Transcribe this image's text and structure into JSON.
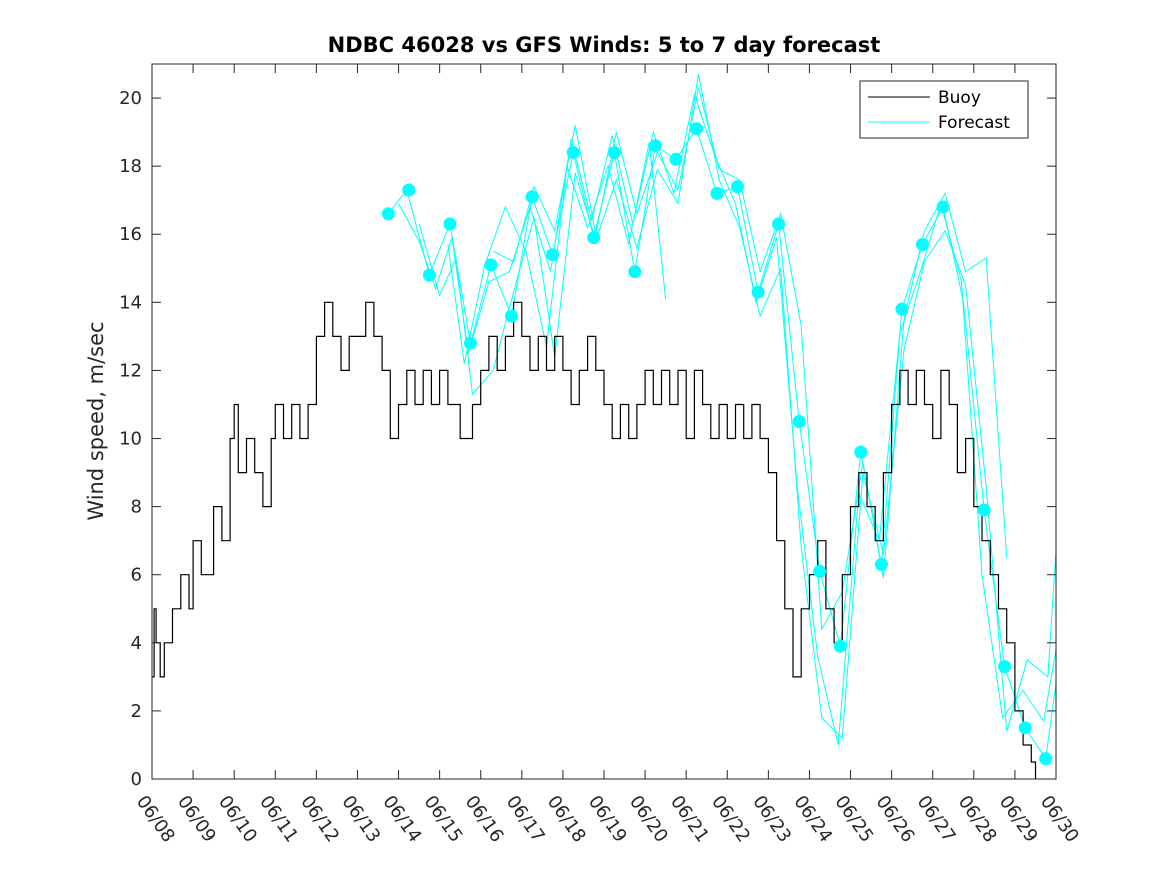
{
  "chart_data": {
    "type": "line",
    "title": "NDBC 46028 vs GFS Winds: 5 to 7 day forecast",
    "xlabel": "",
    "ylabel": "Wind speed, m/sec",
    "x_tick_labels": [
      "06/08",
      "06/09",
      "06/10",
      "06/11",
      "06/12",
      "06/13",
      "06/14",
      "06/15",
      "06/16",
      "06/17",
      "06/18",
      "06/19",
      "06/20",
      "06/21",
      "06/22",
      "06/23",
      "06/24",
      "06/25",
      "06/26",
      "06/27",
      "06/28",
      "06/29",
      "06/30"
    ],
    "y_tick_labels": [
      "0",
      "2",
      "4",
      "6",
      "8",
      "10",
      "12",
      "14",
      "16",
      "18",
      "20"
    ],
    "xlim": [
      0,
      22
    ],
    "ylim": [
      0,
      21
    ],
    "grid": false,
    "legend_position": "top-right",
    "colors": {
      "buoy": "#000000",
      "forecast": "#00ffff"
    },
    "series": [
      {
        "name": "Buoy",
        "points": [
          [
            0,
            3
          ],
          [
            0.05,
            5
          ],
          [
            0.1,
            4
          ],
          [
            0.2,
            3
          ],
          [
            0.3,
            4
          ],
          [
            0.5,
            5
          ],
          [
            0.7,
            6
          ],
          [
            0.9,
            5
          ],
          [
            1,
            7
          ],
          [
            1.2,
            6
          ],
          [
            1.35,
            6
          ],
          [
            1.5,
            8
          ],
          [
            1.7,
            7
          ],
          [
            1.9,
            10
          ],
          [
            2,
            11
          ],
          [
            2.1,
            9
          ],
          [
            2.3,
            10
          ],
          [
            2.5,
            9
          ],
          [
            2.7,
            8
          ],
          [
            2.9,
            10
          ],
          [
            3,
            11
          ],
          [
            3.2,
            10
          ],
          [
            3.4,
            11
          ],
          [
            3.6,
            10
          ],
          [
            3.8,
            11
          ],
          [
            4,
            13
          ],
          [
            4.2,
            14
          ],
          [
            4.4,
            13
          ],
          [
            4.6,
            12
          ],
          [
            4.8,
            13
          ],
          [
            5,
            13
          ],
          [
            5.2,
            14
          ],
          [
            5.4,
            13
          ],
          [
            5.6,
            12
          ],
          [
            5.8,
            10
          ],
          [
            6,
            11
          ],
          [
            6.2,
            12
          ],
          [
            6.4,
            11
          ],
          [
            6.6,
            12
          ],
          [
            6.8,
            11
          ],
          [
            7,
            12
          ],
          [
            7.2,
            11
          ],
          [
            7.5,
            10
          ],
          [
            7.8,
            11
          ],
          [
            8,
            12
          ],
          [
            8.2,
            13
          ],
          [
            8.4,
            12
          ],
          [
            8.6,
            13
          ],
          [
            8.8,
            14
          ],
          [
            9,
            13
          ],
          [
            9.2,
            12
          ],
          [
            9.4,
            13
          ],
          [
            9.6,
            12
          ],
          [
            9.8,
            13
          ],
          [
            10,
            12
          ],
          [
            10.2,
            11
          ],
          [
            10.4,
            12
          ],
          [
            10.6,
            13
          ],
          [
            10.8,
            12
          ],
          [
            11,
            11
          ],
          [
            11.2,
            10
          ],
          [
            11.4,
            11
          ],
          [
            11.6,
            10
          ],
          [
            11.8,
            11
          ],
          [
            12,
            12
          ],
          [
            12.2,
            11
          ],
          [
            12.4,
            12
          ],
          [
            12.6,
            11
          ],
          [
            12.8,
            12
          ],
          [
            13,
            10
          ],
          [
            13.2,
            12
          ],
          [
            13.4,
            11
          ],
          [
            13.6,
            10
          ],
          [
            13.8,
            11
          ],
          [
            14,
            10
          ],
          [
            14.2,
            11
          ],
          [
            14.4,
            10
          ],
          [
            14.6,
            11
          ],
          [
            14.8,
            10
          ],
          [
            15,
            9
          ],
          [
            15.2,
            7
          ],
          [
            15.4,
            5
          ],
          [
            15.6,
            3
          ],
          [
            15.8,
            5
          ],
          [
            16,
            6
          ],
          [
            16.2,
            7
          ],
          [
            16.4,
            5
          ],
          [
            16.6,
            4
          ],
          [
            16.8,
            6
          ],
          [
            17,
            8
          ],
          [
            17.2,
            9
          ],
          [
            17.4,
            8
          ],
          [
            17.6,
            7
          ],
          [
            17.8,
            9
          ],
          [
            18,
            11
          ],
          [
            18.2,
            12
          ],
          [
            18.4,
            11
          ],
          [
            18.6,
            12
          ],
          [
            18.8,
            11
          ],
          [
            19,
            10
          ],
          [
            19.2,
            12
          ],
          [
            19.4,
            11
          ],
          [
            19.6,
            9
          ],
          [
            19.8,
            10
          ],
          [
            20,
            8
          ],
          [
            20.2,
            7
          ],
          [
            20.4,
            6
          ],
          [
            20.6,
            5
          ],
          [
            20.8,
            4
          ],
          [
            21,
            2
          ],
          [
            21.2,
            1
          ],
          [
            21.4,
            0.5
          ],
          [
            21.5,
            0
          ]
        ]
      },
      {
        "name": "Forecast",
        "dots": [
          [
            5.75,
            16.6
          ],
          [
            6.25,
            17.3
          ],
          [
            6.75,
            14.8
          ],
          [
            7.25,
            16.3
          ],
          [
            7.75,
            12.8
          ],
          [
            8.25,
            15.1
          ],
          [
            8.75,
            13.6
          ],
          [
            9.25,
            17.1
          ],
          [
            9.75,
            15.4
          ],
          [
            10.25,
            18.4
          ],
          [
            10.75,
            15.9
          ],
          [
            11.25,
            18.4
          ],
          [
            11.75,
            14.9
          ],
          [
            12.25,
            18.6
          ],
          [
            12.75,
            18.2
          ],
          [
            13.25,
            19.1
          ],
          [
            13.75,
            17.2
          ],
          [
            14.25,
            17.4
          ],
          [
            14.75,
            14.3
          ],
          [
            15.25,
            16.3
          ],
          [
            15.75,
            10.5
          ],
          [
            16.25,
            6.1
          ],
          [
            16.75,
            3.9
          ],
          [
            17.25,
            9.6
          ],
          [
            17.75,
            6.3
          ],
          [
            18.25,
            13.8
          ],
          [
            18.75,
            15.7
          ],
          [
            19.25,
            16.8
          ],
          [
            20.25,
            7.9
          ],
          [
            20.75,
            3.3
          ],
          [
            21.25,
            1.5
          ],
          [
            21.75,
            0.6
          ]
        ],
        "lines": [
          [
            [
              5.75,
              16.6
            ],
            [
              6.2,
              17.3
            ],
            [
              6.75,
              14.8
            ],
            [
              7.25,
              16.3
            ],
            [
              7.75,
              12.8
            ],
            [
              8.25,
              15.1
            ],
            [
              8.75,
              13.6
            ],
            [
              9.25,
              17.1
            ],
            [
              9.75,
              15.4
            ],
            [
              10.25,
              18.4
            ],
            [
              10.75,
              15.9
            ],
            [
              11.25,
              18.4
            ],
            [
              11.75,
              14.9
            ],
            [
              12.25,
              18.6
            ],
            [
              12.75,
              18.2
            ],
            [
              13.25,
              19.1
            ],
            [
              13.75,
              17.2
            ],
            [
              14.25,
              17.4
            ],
            [
              14.75,
              14.3
            ],
            [
              15.25,
              16.3
            ],
            [
              15.75,
              10.5
            ],
            [
              16.25,
              6.1
            ],
            [
              16.75,
              3.9
            ],
            [
              17.25,
              9.6
            ],
            [
              17.75,
              6.3
            ],
            [
              18.25,
              13.8
            ],
            [
              18.75,
              15.7
            ],
            [
              19.25,
              16.8
            ],
            [
              19.75,
              14.0
            ],
            [
              20.25,
              7.9
            ],
            [
              20.75,
              3.3
            ],
            [
              21.25,
              1.5
            ],
            [
              21.75,
              0.6
            ],
            [
              22,
              2.8
            ]
          ],
          [
            [
              6,
              16.9
            ],
            [
              6.5,
              15.8
            ],
            [
              6.9,
              14.4
            ],
            [
              7.3,
              15.9
            ],
            [
              7.7,
              12.5
            ],
            [
              8.2,
              14.6
            ],
            [
              8.7,
              14.9
            ],
            [
              9.2,
              16.8
            ],
            [
              9.7,
              14.9
            ],
            [
              10.2,
              18.8
            ],
            [
              10.7,
              16.4
            ],
            [
              11.2,
              18.9
            ],
            [
              11.7,
              16.3
            ],
            [
              12.2,
              19.0
            ],
            [
              12.7,
              17.2
            ],
            [
              13.2,
              20.1
            ],
            [
              13.7,
              18.3
            ],
            [
              14.2,
              16.9
            ],
            [
              14.7,
              14.0
            ],
            [
              15.2,
              15.9
            ],
            [
              15.7,
              8.6
            ],
            [
              16.2,
              3.6
            ],
            [
              16.7,
              1.0
            ],
            [
              17.2,
              8.4
            ],
            [
              17.7,
              7.0
            ],
            [
              18.2,
              13.1
            ],
            [
              18.7,
              14.9
            ],
            [
              19.2,
              16.9
            ],
            [
              19.7,
              14.6
            ],
            [
              20.2,
              6.0
            ],
            [
              20.7,
              1.8
            ],
            [
              21.2,
              2.6
            ],
            [
              21.7,
              1.7
            ],
            [
              22,
              3.8
            ]
          ],
          [
            [
              6.5,
              16.3
            ],
            [
              7,
              14.2
            ],
            [
              7.4,
              15.3
            ],
            [
              7.8,
              11.3
            ],
            [
              8.3,
              12.0
            ],
            [
              8.8,
              14.3
            ],
            [
              9.3,
              16.5
            ],
            [
              9.8,
              12.4
            ],
            [
              10.3,
              17.8
            ],
            [
              10.8,
              15.8
            ],
            [
              11.3,
              17.6
            ],
            [
              11.8,
              15.6
            ],
            [
              12.3,
              17.9
            ],
            [
              12.8,
              16.9
            ],
            [
              13.3,
              20.7
            ],
            [
              13.8,
              17.6
            ],
            [
              14.3,
              16.2
            ],
            [
              14.8,
              13.6
            ],
            [
              15.3,
              15.0
            ],
            [
              15.8,
              6.8
            ],
            [
              16.3,
              1.8
            ],
            [
              16.8,
              1.2
            ],
            [
              17.3,
              9.0
            ],
            [
              17.8,
              6.6
            ],
            [
              18.3,
              12.6
            ],
            [
              18.8,
              15.2
            ],
            [
              19.3,
              16.1
            ],
            [
              19.8,
              14.5
            ],
            [
              20.3,
              8.6
            ],
            [
              20.8,
              1.4
            ],
            [
              21.3,
              3.5
            ],
            [
              21.8,
              3.0
            ],
            [
              22,
              6.7
            ]
          ],
          [
            [
              7.2,
              15.7
            ],
            [
              7.6,
              12.2
            ],
            [
              8.1,
              15.1
            ],
            [
              8.6,
              16.8
            ],
            [
              9.1,
              15.5
            ],
            [
              9.6,
              12.7
            ],
            [
              10.1,
              18.0
            ],
            [
              10.6,
              16.2
            ],
            [
              11.1,
              18.0
            ],
            [
              11.6,
              15.7
            ],
            [
              12.1,
              18.7
            ],
            [
              12.5,
              14.1
            ]
          ],
          [
            [
              8.3,
              15.5
            ],
            [
              8.8,
              15.2
            ],
            [
              9.3,
              17.4
            ],
            [
              9.8,
              16.1
            ],
            [
              10.3,
              19.2
            ],
            [
              10.8,
              16.0
            ],
            [
              11.3,
              19.0
            ],
            [
              11.8,
              16.6
            ],
            [
              12.3,
              18.4
            ],
            [
              12.8,
              17.3
            ],
            [
              13.3,
              20.3
            ],
            [
              13.8,
              17.9
            ],
            [
              14.3,
              17.6
            ],
            [
              14.8,
              14.9
            ],
            [
              15.3,
              16.6
            ],
            [
              15.8,
              13.3
            ],
            [
              16.3,
              4.4
            ],
            [
              16.8,
              5.5
            ],
            [
              17.3,
              9.3
            ],
            [
              17.8,
              5.9
            ],
            [
              18.3,
              13.5
            ],
            [
              18.8,
              16.1
            ],
            [
              19.3,
              17.2
            ],
            [
              19.8,
              14.9
            ],
            [
              20.3,
              15.3
            ],
            [
              20.8,
              6.5
            ]
          ]
        ]
      }
    ]
  }
}
